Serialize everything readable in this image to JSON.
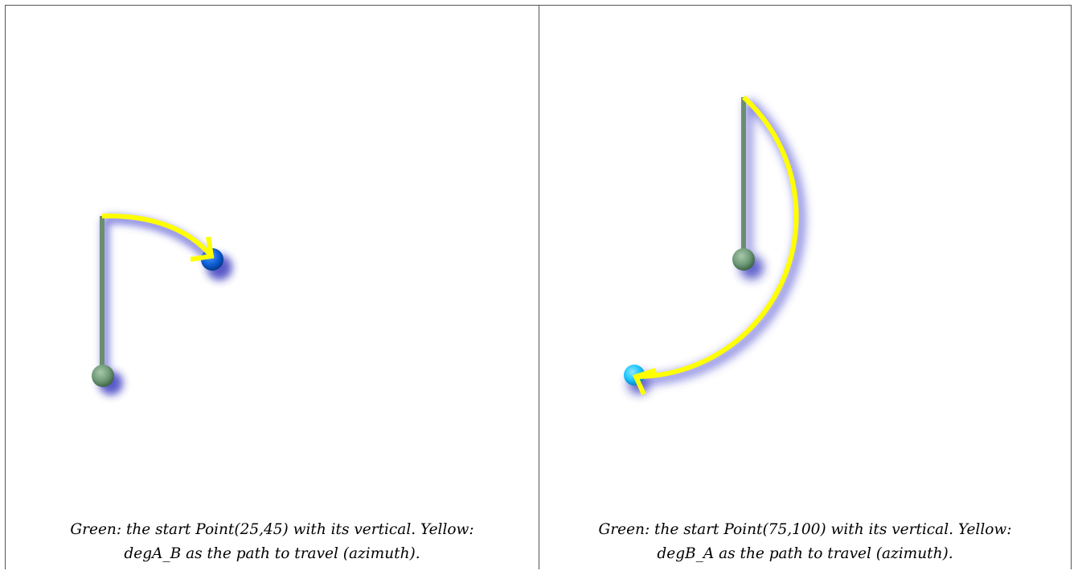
{
  "panels": [
    {
      "caption_line1": "Green: the start Point(25,45) with its vertical. Yellow:",
      "caption_line2": "degA_B as the path to travel (azimuth)."
    },
    {
      "caption_line1": "Green: the start Point(75,100) with its vertical. Yellow:",
      "caption_line2": "degB_A as the path to travel (azimuth)."
    }
  ],
  "colors": {
    "start_point": "#6e9a77",
    "vertical": "#6b8f6e",
    "path": "#ffff00",
    "glow": "#4b4bd0",
    "end_point_left": "#0e5fd6",
    "end_point_right": "#19c5ff"
  }
}
